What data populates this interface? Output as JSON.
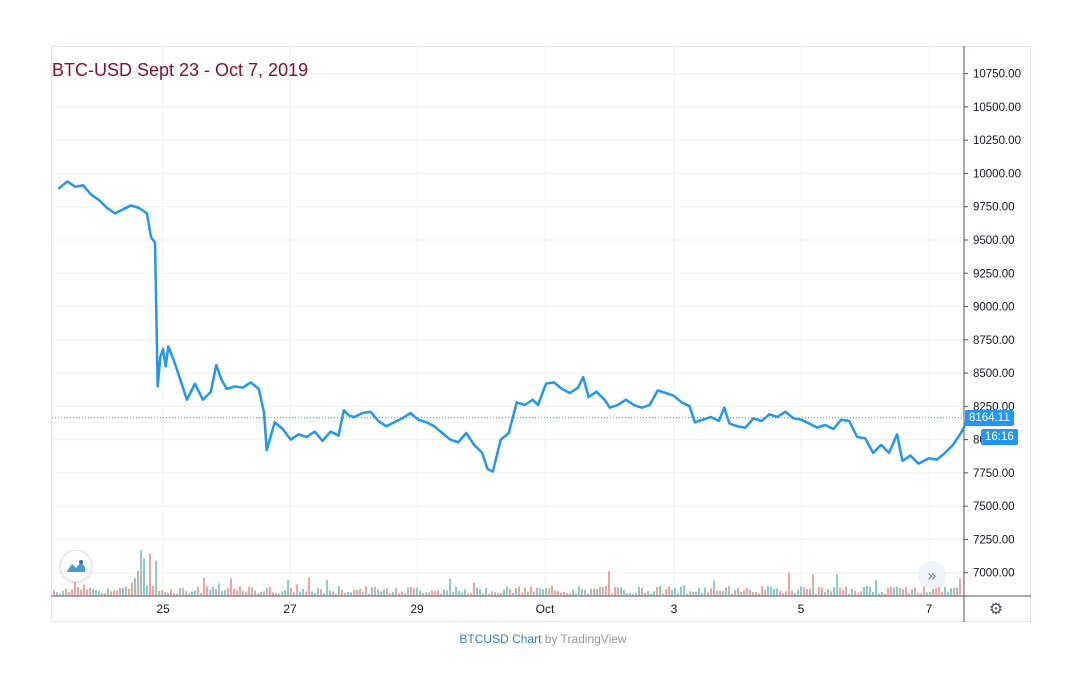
{
  "chart_data": {
    "type": "line",
    "title": "BTC-USD Sept 23 - Oct 7, 2019",
    "symbol": "BTCUSD",
    "x_ticks": [
      "25",
      "27",
      "29",
      "Oct",
      "3",
      "5",
      "7"
    ],
    "y_ticks": [
      "10750.00",
      "10500.00",
      "10250.00",
      "10000.00",
      "9750.00",
      "9500.00",
      "9250.00",
      "9000.00",
      "8750.00",
      "8500.00",
      "8250.00",
      "8000.00",
      "7750.00",
      "7500.00",
      "7250.00",
      "7000.00"
    ],
    "ylim": [
      6825,
      10950
    ],
    "last_price": "8164.11",
    "countdown": "16:16",
    "grid": true,
    "series": [
      {
        "color": "#2196f3",
        "points": [
          [
            "2019-09-23 09:00",
            9890
          ],
          [
            "2019-09-23 12:00",
            9940
          ],
          [
            "2019-09-23 15:00",
            9900
          ],
          [
            "2019-09-23 18:00",
            9910
          ],
          [
            "2019-09-23 21:00",
            9840
          ],
          [
            "2019-09-24 00:00",
            9800
          ],
          [
            "2019-09-24 03:00",
            9740
          ],
          [
            "2019-09-24 06:00",
            9700
          ],
          [
            "2019-09-24 09:00",
            9730
          ],
          [
            "2019-09-24 12:00",
            9760
          ],
          [
            "2019-09-24 15:00",
            9740
          ],
          [
            "2019-09-24 18:00",
            9700
          ],
          [
            "2019-09-24 19:30",
            9520
          ],
          [
            "2019-09-24 21:00",
            9480
          ],
          [
            "2019-09-24 22:00",
            8400
          ],
          [
            "2019-09-24 23:00",
            8620
          ],
          [
            "2019-09-25 00:00",
            8680
          ],
          [
            "2019-09-25 01:00",
            8550
          ],
          [
            "2019-09-25 02:00",
            8700
          ],
          [
            "2019-09-25 04:00",
            8600
          ],
          [
            "2019-09-25 06:00",
            8480
          ],
          [
            "2019-09-25 09:00",
            8300
          ],
          [
            "2019-09-25 12:00",
            8420
          ],
          [
            "2019-09-25 15:00",
            8300
          ],
          [
            "2019-09-25 18:00",
            8360
          ],
          [
            "2019-09-25 20:00",
            8560
          ],
          [
            "2019-09-25 22:00",
            8450
          ],
          [
            "2019-09-26 00:00",
            8380
          ],
          [
            "2019-09-26 03:00",
            8400
          ],
          [
            "2019-09-26 06:00",
            8390
          ],
          [
            "2019-09-26 09:00",
            8430
          ],
          [
            "2019-09-26 12:00",
            8380
          ],
          [
            "2019-09-26 14:00",
            8200
          ],
          [
            "2019-09-26 15:00",
            7920
          ],
          [
            "2019-09-26 18:00",
            8130
          ],
          [
            "2019-09-26 21:00",
            8080
          ],
          [
            "2019-09-27 00:00",
            8000
          ],
          [
            "2019-09-27 03:00",
            8040
          ],
          [
            "2019-09-27 06:00",
            8020
          ],
          [
            "2019-09-27 09:00",
            8060
          ],
          [
            "2019-09-27 12:00",
            7990
          ],
          [
            "2019-09-27 15:00",
            8060
          ],
          [
            "2019-09-27 18:00",
            8030
          ],
          [
            "2019-09-27 20:00",
            8220
          ],
          [
            "2019-09-27 22:00",
            8180
          ],
          [
            "2019-09-28 00:00",
            8170
          ],
          [
            "2019-09-28 03:00",
            8200
          ],
          [
            "2019-09-28 06:00",
            8210
          ],
          [
            "2019-09-28 09:00",
            8140
          ],
          [
            "2019-09-28 12:00",
            8100
          ],
          [
            "2019-09-28 15:00",
            8130
          ],
          [
            "2019-09-28 18:00",
            8160
          ],
          [
            "2019-09-28 21:00",
            8200
          ],
          [
            "2019-09-29 00:00",
            8150
          ],
          [
            "2019-09-29 03:00",
            8130
          ],
          [
            "2019-09-29 06:00",
            8100
          ],
          [
            "2019-09-29 09:00",
            8050
          ],
          [
            "2019-09-29 12:00",
            8000
          ],
          [
            "2019-09-29 15:00",
            7980
          ],
          [
            "2019-09-29 18:00",
            8050
          ],
          [
            "2019-09-29 21:00",
            7960
          ],
          [
            "2019-09-30 00:00",
            7900
          ],
          [
            "2019-09-30 02:00",
            7780
          ],
          [
            "2019-09-30 04:00",
            7760
          ],
          [
            "2019-09-30 07:00",
            8000
          ],
          [
            "2019-09-30 10:00",
            8050
          ],
          [
            "2019-09-30 13:00",
            8280
          ],
          [
            "2019-09-30 16:00",
            8260
          ],
          [
            "2019-09-30 19:00",
            8300
          ],
          [
            "2019-09-30 21:00",
            8260
          ],
          [
            "2019-10-01 00:00",
            8420
          ],
          [
            "2019-10-01 03:00",
            8430
          ],
          [
            "2019-10-01 06:00",
            8380
          ],
          [
            "2019-10-01 09:00",
            8350
          ],
          [
            "2019-10-01 12:00",
            8390
          ],
          [
            "2019-10-01 14:00",
            8470
          ],
          [
            "2019-10-01 16:00",
            8320
          ],
          [
            "2019-10-01 19:00",
            8360
          ],
          [
            "2019-10-01 22:00",
            8300
          ],
          [
            "2019-10-02 00:00",
            8240
          ],
          [
            "2019-10-02 03:00",
            8260
          ],
          [
            "2019-10-02 06:00",
            8300
          ],
          [
            "2019-10-02 09:00",
            8260
          ],
          [
            "2019-10-02 12:00",
            8240
          ],
          [
            "2019-10-02 15:00",
            8260
          ],
          [
            "2019-10-02 18:00",
            8370
          ],
          [
            "2019-10-02 21:00",
            8350
          ],
          [
            "2019-10-03 00:00",
            8330
          ],
          [
            "2019-10-03 03:00",
            8280
          ],
          [
            "2019-10-03 06:00",
            8250
          ],
          [
            "2019-10-03 08:00",
            8130
          ],
          [
            "2019-10-03 11:00",
            8150
          ],
          [
            "2019-10-03 14:00",
            8170
          ],
          [
            "2019-10-03 17:00",
            8140
          ],
          [
            "2019-10-03 19:00",
            8240
          ],
          [
            "2019-10-03 21:00",
            8120
          ],
          [
            "2019-10-04 00:00",
            8100
          ],
          [
            "2019-10-04 03:00",
            8090
          ],
          [
            "2019-10-04 06:00",
            8160
          ],
          [
            "2019-10-04 09:00",
            8140
          ],
          [
            "2019-10-04 12:00",
            8190
          ],
          [
            "2019-10-04 15:00",
            8170
          ],
          [
            "2019-10-04 18:00",
            8210
          ],
          [
            "2019-10-04 21:00",
            8160
          ],
          [
            "2019-10-05 00:00",
            8150
          ],
          [
            "2019-10-05 03:00",
            8120
          ],
          [
            "2019-10-05 06:00",
            8090
          ],
          [
            "2019-10-05 09:00",
            8110
          ],
          [
            "2019-10-05 12:00",
            8080
          ],
          [
            "2019-10-05 15:00",
            8150
          ],
          [
            "2019-10-05 18:00",
            8140
          ],
          [
            "2019-10-05 21:00",
            8020
          ],
          [
            "2019-10-06 00:00",
            8010
          ],
          [
            "2019-10-06 03:00",
            7900
          ],
          [
            "2019-10-06 06:00",
            7960
          ],
          [
            "2019-10-06 09:00",
            7900
          ],
          [
            "2019-10-06 12:00",
            8040
          ],
          [
            "2019-10-06 14:00",
            7840
          ],
          [
            "2019-10-06 17:00",
            7880
          ],
          [
            "2019-10-06 20:00",
            7820
          ],
          [
            "2019-10-07 00:00",
            7860
          ],
          [
            "2019-10-07 03:00",
            7850
          ],
          [
            "2019-10-07 06:00",
            7900
          ],
          [
            "2019-10-07 09:00",
            7960
          ],
          [
            "2019-10-07 12:00",
            8050
          ],
          [
            "2019-10-07 15:00",
            8164
          ]
        ]
      }
    ],
    "volume_colors": {
      "up": "#26a69a",
      "down": "#ef5350"
    }
  },
  "footer": {
    "link_text": "BTCUSD Chart",
    "by_text": "by TradingView"
  },
  "icons": {
    "logo": "tradingview-logo-icon",
    "scroll": "double-chevron-right-icon",
    "settings": "gear-icon"
  }
}
